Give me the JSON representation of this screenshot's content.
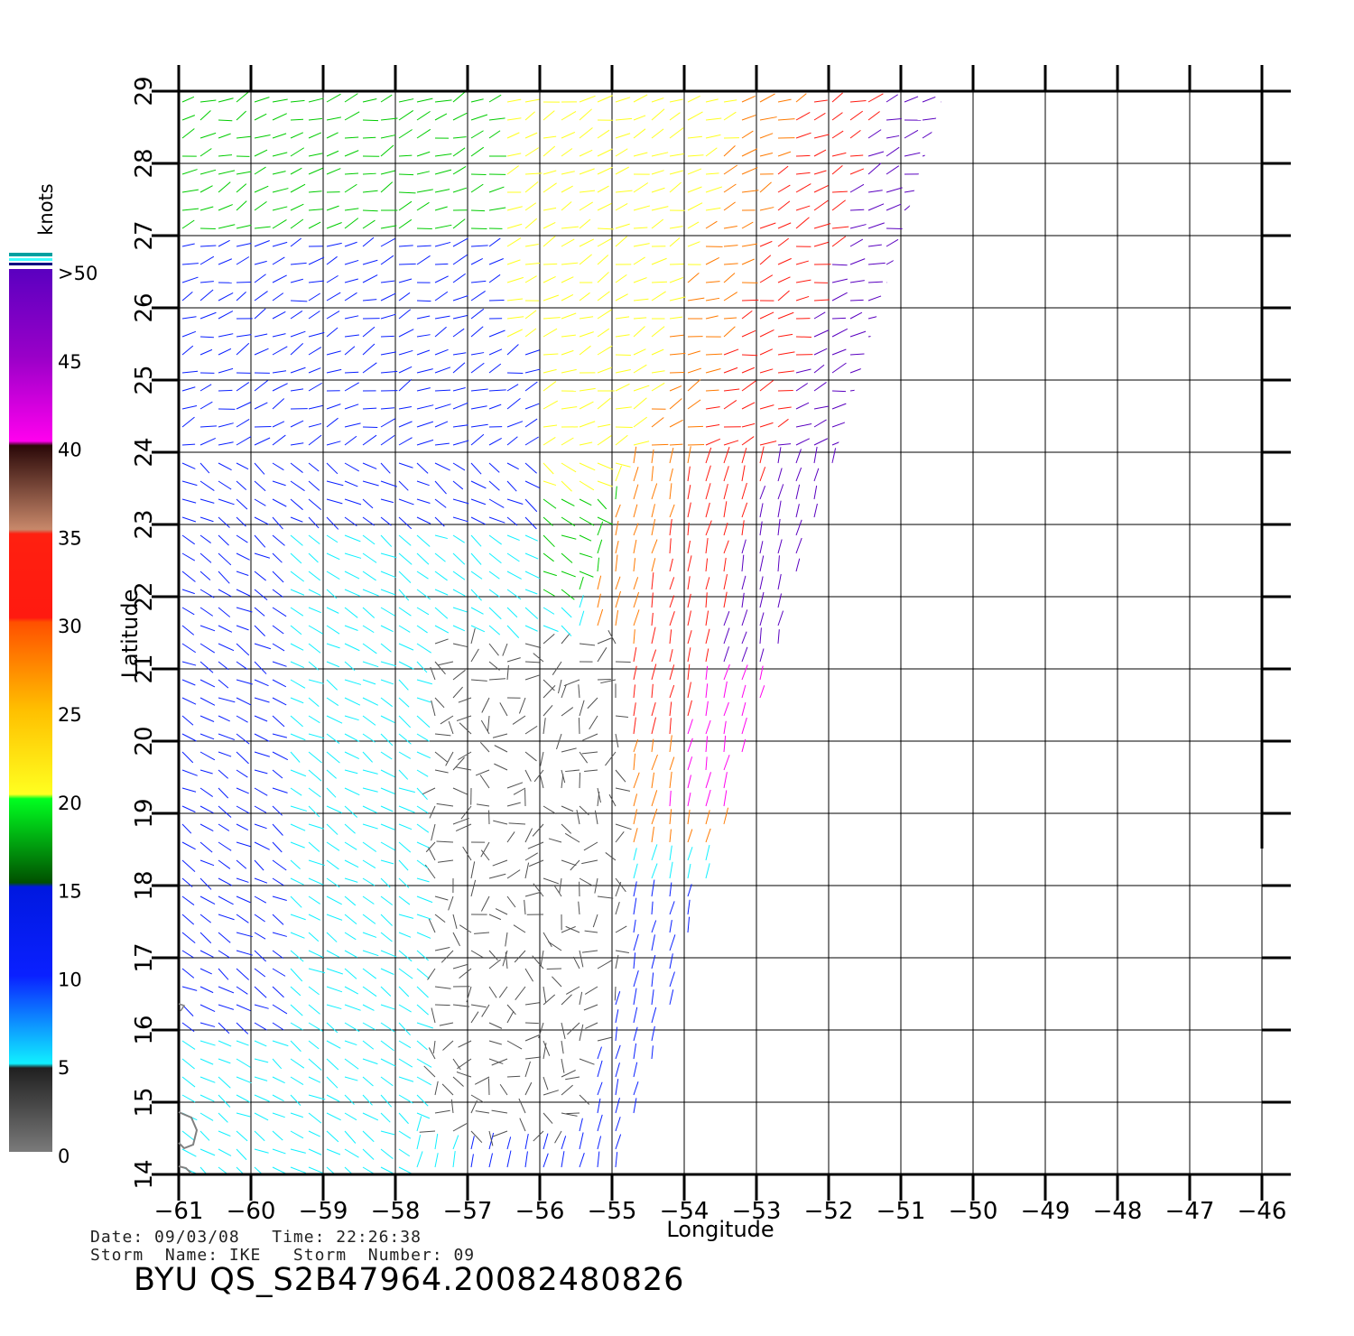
{
  "map": {
    "region": "Western Atlantic east of the Lesser Antilles",
    "lon_range": [
      -61,
      -46
    ],
    "lat_range": [
      14,
      29
    ],
    "lon_ticks": [
      "−61",
      "−60",
      "−59",
      "−58",
      "−57",
      "−56",
      "−55",
      "−54",
      "−53",
      "−52",
      "−51",
      "−50",
      "−49",
      "−48",
      "−47",
      "−46"
    ],
    "lat_ticks": [
      "14",
      "15",
      "16",
      "17",
      "18",
      "19",
      "20",
      "21",
      "22",
      "23",
      "24",
      "25",
      "26",
      "27",
      "28",
      "29"
    ],
    "x_label": "Longitude",
    "y_label": "Latitude",
    "grid": true,
    "swath_description": "Scatterometer wind swath; coverage west of roughly -55 at 14N widening to -50.5 at 29N",
    "wind_regions": [
      {
        "location": "swath eastern edge",
        "speed_knots": ">40",
        "color": "purple/magenta"
      },
      {
        "location": "east-central swath",
        "speed_knots": "25-35",
        "color": "orange/red"
      },
      {
        "location": "north-central",
        "speed_knots": "15-25",
        "color": "green/yellow"
      },
      {
        "location": "west and south",
        "speed_knots": "5-15",
        "color": "blue/cyan"
      },
      {
        "location": "south-central near -56 to -57, 15-21N",
        "speed_knots": "0-5",
        "color": "gray/black"
      }
    ]
  },
  "colorbar": {
    "title": "knots",
    "labels": [
      ">50",
      "45",
      "40",
      "35",
      "30",
      "25",
      "20",
      "15",
      "10",
      "5",
      "0"
    ],
    "colors": {
      "over": "#5a00c0",
      "magenta": "#ff00ee",
      "brown": "#4a1410",
      "red": "#ff1a10",
      "orange": "#ff7a00",
      "yellow": "#ffff20",
      "green": "#00cc00",
      "blue": "#0a20ff",
      "cyan": "#10f0ff",
      "gray": "#7a7a7a"
    }
  },
  "footer": {
    "date_line": "Date: 09/03/08   Time: 22:26:38",
    "storm_line": "Storm  Name: IKE   Storm  Number: 09",
    "product_line": "BYU  QS_S2B47964.20082480826"
  }
}
